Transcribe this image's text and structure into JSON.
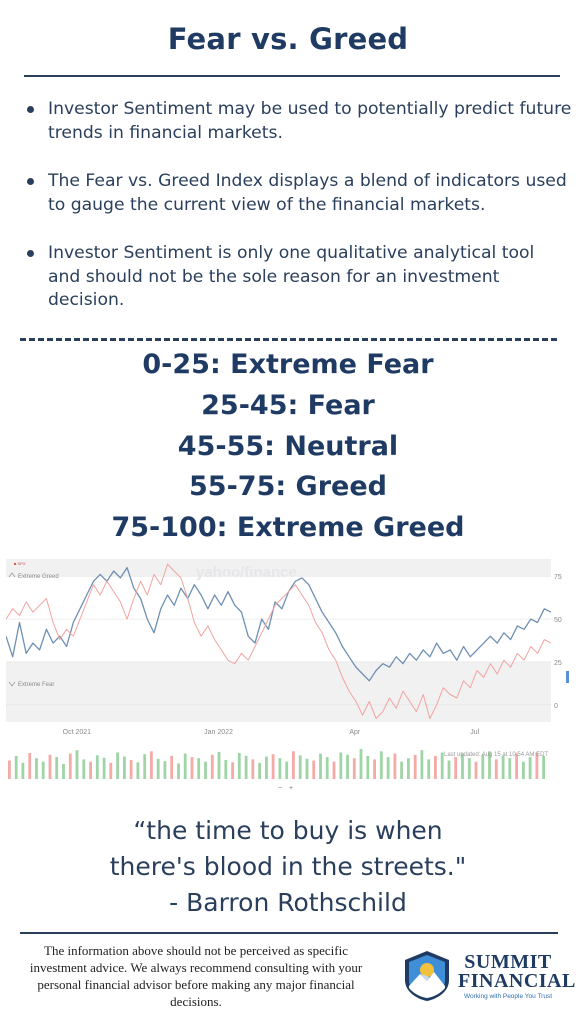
{
  "title": "Fear vs. Greed",
  "bullets": [
    "Investor Sentiment may be used to potentially predict future trends in financial markets.",
    "The Fear vs. Greed Index displays a blend of indicators used to gauge the current view of the financial markets.",
    "Investor Sentiment is only one qualitative analytical tool and should not be the sole reason for an investment decision."
  ],
  "ranges": [
    "0-25: Extreme Fear",
    "25-45: Fear",
    "45-55: Neutral",
    "55-75: Greed",
    "75-100: Extreme Greed"
  ],
  "chart_data": {
    "type": "line",
    "watermark": "yahoo/finance",
    "zones": {
      "upper_label": "Extreme Greed",
      "lower_label": "Extreme Fear"
    },
    "x_ticks": [
      "Oct 2021",
      "Jan 2022",
      "Apr",
      "Jul"
    ],
    "y_ticks": [
      75,
      50,
      25,
      0
    ],
    "ylim": [
      -10,
      85
    ],
    "last_updated": "Last updated: Aug 15 at 10:54 AM EDT",
    "zoom_controls": [
      "−",
      "+"
    ],
    "series": [
      {
        "color": "#6f8fb3",
        "values": [
          40,
          28,
          48,
          30,
          36,
          32,
          44,
          36,
          40,
          34,
          48,
          56,
          64,
          72,
          76,
          72,
          78,
          74,
          80,
          68,
          62,
          50,
          42,
          56,
          64,
          58,
          68,
          62,
          70,
          64,
          56,
          64,
          58,
          66,
          58,
          54,
          40,
          36,
          50,
          44,
          60,
          56,
          66,
          72,
          74,
          70,
          62,
          54,
          48,
          42,
          34,
          28,
          22,
          18,
          14,
          20,
          24,
          22,
          28,
          24,
          30,
          26,
          32,
          28,
          36,
          30,
          32,
          26,
          34,
          28,
          32,
          36,
          40,
          36,
          42,
          38,
          46,
          44,
          50,
          48,
          56,
          54
        ]
      },
      {
        "color": "#f2a3a1",
        "values": [
          50,
          56,
          52,
          60,
          54,
          58,
          62,
          48,
          38,
          44,
          40,
          50,
          60,
          70,
          64,
          72,
          66,
          60,
          50,
          62,
          72,
          64,
          76,
          70,
          82,
          78,
          74,
          62,
          48,
          40,
          46,
          38,
          32,
          26,
          24,
          30,
          26,
          34,
          42,
          50,
          58,
          62,
          66,
          70,
          64,
          58,
          48,
          42,
          32,
          26,
          16,
          8,
          2,
          -6,
          2,
          -8,
          -4,
          4,
          -2,
          8,
          2,
          -4,
          6,
          -8,
          0,
          10,
          6,
          4,
          14,
          10,
          20,
          16,
          24,
          18,
          26,
          22,
          30,
          26,
          34,
          30,
          38,
          36
        ]
      }
    ],
    "volume": [
      32,
      40,
      28,
      45,
      36,
      30,
      42,
      38,
      26,
      44,
      50,
      34,
      30,
      41,
      37,
      28,
      46,
      39,
      33,
      29,
      43,
      48,
      35,
      31,
      40,
      27,
      44,
      38,
      36,
      30,
      42,
      47,
      33,
      29,
      45,
      40,
      34,
      28,
      39,
      43,
      36,
      30,
      48,
      41,
      35,
      32,
      44,
      38,
      30,
      46,
      42,
      36,
      52,
      40,
      34,
      48,
      38,
      44,
      30,
      36,
      42,
      50,
      34,
      40,
      46,
      32,
      38,
      44,
      36,
      30,
      42,
      48,
      34,
      40,
      36,
      44,
      30,
      38,
      46,
      40
    ]
  },
  "quote": [
    "“the time to buy is when",
    "there's blood in the streets.\"",
    "- Barron Rothschild"
  ],
  "disclaimer": "The information above should not be perceived as specific investment advice. We always recommend consulting with your personal financial advisor before making any major financial decisions.",
  "logo": {
    "line1": "SUMMIT",
    "line2": "FINANCIAL",
    "tagline": "Working with People You Trust"
  },
  "colors": {
    "navy": "#1f3b63",
    "blue_series": "#6f8fb3",
    "red_series": "#f2a3a1",
    "greed_up": "#9fd4a6",
    "fear_down": "#f4aaa6"
  }
}
